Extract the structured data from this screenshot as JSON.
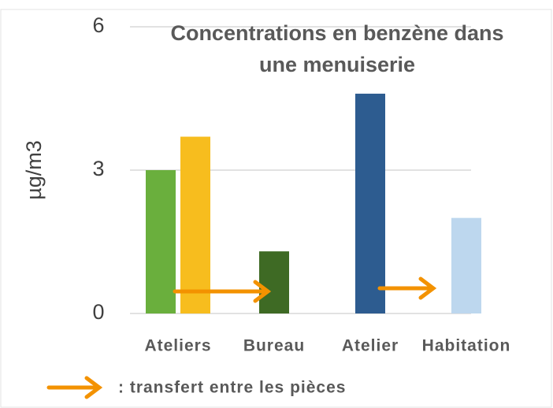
{
  "chart_data": {
    "type": "bar",
    "title": [
      "Concentrations en benzène dans",
      "une menuiserie"
    ],
    "ylabel": "µg/m3",
    "categories": [
      "Ateliers",
      "Bureau",
      "Atelier",
      "Habitation"
    ],
    "series": [
      {
        "colors": [
          "#6aaf3d",
          "#3e6a24",
          "#2d5c90",
          "#bdd7ee"
        ],
        "values": [
          3.0,
          1.3,
          4.6,
          2.0
        ]
      },
      {
        "colors": [
          "#f7bd1e",
          null,
          null,
          null
        ],
        "values": [
          3.7,
          null,
          null,
          null
        ]
      }
    ],
    "ylim": [
      0,
      6
    ],
    "yticks": [
      0,
      3,
      6
    ],
    "grid": true,
    "annotation": ": transfert entre les pièces"
  }
}
